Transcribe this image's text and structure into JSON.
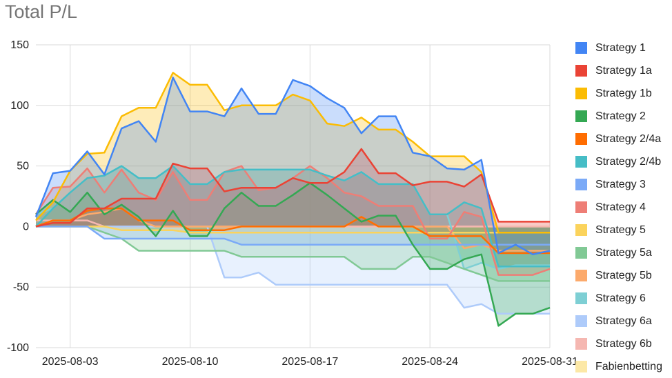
{
  "chart_data": {
    "type": "area",
    "title": "Total P/L",
    "xlabel": "",
    "ylabel": "",
    "ylim": [
      -100,
      150
    ],
    "yticks": [
      150,
      100,
      50,
      0,
      -50,
      -100
    ],
    "xlim": [
      "2025-08-01",
      "2025-08-31"
    ],
    "xticks": [
      "2025-08-03",
      "2025-08-10",
      "2025-08-17",
      "2025-08-24",
      "2025-08-31"
    ],
    "grid": true,
    "legend_position": "right",
    "x": [
      "2025-08-01",
      "2025-08-02",
      "2025-08-03",
      "2025-08-04",
      "2025-08-05",
      "2025-08-06",
      "2025-08-07",
      "2025-08-08",
      "2025-08-09",
      "2025-08-10",
      "2025-08-11",
      "2025-08-12",
      "2025-08-13",
      "2025-08-14",
      "2025-08-15",
      "2025-08-16",
      "2025-08-17",
      "2025-08-18",
      "2025-08-19",
      "2025-08-20",
      "2025-08-21",
      "2025-08-22",
      "2025-08-23",
      "2025-08-24",
      "2025-08-25",
      "2025-08-26",
      "2025-08-27",
      "2025-08-28",
      "2025-08-29",
      "2025-08-30",
      "2025-08-31"
    ],
    "series": [
      {
        "name": "Fabienbetting",
        "color": "#fce8a6",
        "values": [
          0,
          0,
          0,
          0,
          0,
          0,
          0,
          0,
          0,
          0,
          0,
          0,
          0,
          0,
          0,
          0,
          0,
          0,
          0,
          0,
          0,
          0,
          0,
          0,
          0,
          0,
          0,
          0,
          0,
          0,
          0
        ]
      },
      {
        "name": "Strategy 6b",
        "color": "#f5b7b1",
        "values": [
          5,
          5,
          5,
          5,
          0,
          0,
          0,
          0,
          0,
          0,
          0,
          0,
          0,
          0,
          0,
          0,
          0,
          0,
          0,
          0,
          0,
          0,
          0,
          0,
          0,
          0,
          0,
          0,
          0,
          0,
          0
        ]
      },
      {
        "name": "Strategy 6a",
        "color": "#aecbfa",
        "values": [
          0,
          0,
          0,
          0,
          0,
          0,
          0,
          0,
          0,
          0,
          0,
          -42,
          -42,
          -38,
          -48,
          -48,
          -48,
          -48,
          -48,
          -48,
          -48,
          -48,
          -48,
          -48,
          -48,
          -67,
          -64,
          -72,
          -72,
          -72,
          -72
        ]
      },
      {
        "name": "Strategy 6",
        "color": "#7ecfd4",
        "values": [
          10,
          15,
          28,
          40,
          42,
          50,
          40,
          40,
          50,
          35,
          35,
          45,
          47,
          47,
          47,
          47,
          47,
          42,
          38,
          45,
          35,
          35,
          35,
          10,
          10,
          -35,
          -30,
          -35,
          -32,
          -32,
          -32
        ]
      },
      {
        "name": "Strategy 5b",
        "color": "#fcaa6c",
        "values": [
          0,
          5,
          5,
          10,
          12,
          15,
          5,
          0,
          0,
          0,
          0,
          0,
          0,
          0,
          0,
          0,
          0,
          0,
          0,
          8,
          0,
          0,
          0,
          0,
          0,
          -18,
          -15,
          -20,
          -20,
          -20,
          -20
        ]
      },
      {
        "name": "Strategy 5a",
        "color": "#81c995",
        "values": [
          0,
          0,
          0,
          0,
          -5,
          -10,
          -20,
          -20,
          -20,
          -20,
          -20,
          -20,
          -25,
          -25,
          -25,
          -25,
          -25,
          -25,
          -25,
          -35,
          -35,
          -35,
          -25,
          -25,
          -30,
          -35,
          -40,
          -45,
          -45,
          -45,
          -45
        ]
      },
      {
        "name": "Strategy 5",
        "color": "#fbd35c",
        "values": [
          0,
          0,
          0,
          0,
          0,
          -3,
          -3,
          -3,
          -3,
          -5,
          -5,
          -5,
          -5,
          -5,
          -5,
          -5,
          -5,
          -5,
          -5,
          -5,
          -5,
          -5,
          -5,
          -5,
          -5,
          -5,
          -5,
          -5,
          -5,
          -5,
          -5
        ]
      },
      {
        "name": "Strategy 4",
        "color": "#ee7e76",
        "values": [
          10,
          32,
          33,
          48,
          28,
          47,
          28,
          22,
          45,
          22,
          22,
          45,
          50,
          30,
          32,
          40,
          50,
          40,
          28,
          25,
          17,
          17,
          17,
          -10,
          -10,
          12,
          8,
          -40,
          -40,
          -40,
          -35
        ]
      },
      {
        "name": "Strategy 3",
        "color": "#7baaf7",
        "values": [
          0,
          0,
          0,
          0,
          -10,
          -10,
          -10,
          -10,
          -10,
          -10,
          -10,
          -10,
          -15,
          -15,
          -15,
          -15,
          -15,
          -15,
          -15,
          -15,
          -15,
          -15,
          -15,
          -15,
          -15,
          -15,
          -15,
          -15,
          -15,
          -15,
          -15
        ]
      },
      {
        "name": "Strategy 2/4b",
        "color": "#46bdc6",
        "values": [
          0,
          15,
          28,
          40,
          42,
          50,
          40,
          40,
          50,
          35,
          35,
          45,
          47,
          47,
          47,
          47,
          47,
          42,
          38,
          45,
          35,
          35,
          35,
          10,
          10,
          20,
          15,
          -33,
          -33,
          -33,
          -33
        ]
      },
      {
        "name": "Strategy 2/4a",
        "color": "#ff6d01",
        "values": [
          0,
          5,
          5,
          13,
          15,
          15,
          5,
          5,
          5,
          -3,
          -3,
          -3,
          0,
          0,
          0,
          0,
          0,
          0,
          0,
          8,
          0,
          0,
          0,
          -8,
          -8,
          -8,
          -8,
          -22,
          -22,
          -22,
          -22
        ]
      },
      {
        "name": "Strategy 2",
        "color": "#34a853",
        "values": [
          10,
          22,
          12,
          28,
          10,
          18,
          8,
          -8,
          13,
          -8,
          -8,
          15,
          28,
          17,
          17,
          26,
          36,
          26,
          15,
          4,
          9,
          9,
          -15,
          -35,
          -35,
          -27,
          -23,
          -82,
          -72,
          -72,
          -67
        ]
      },
      {
        "name": "Strategy 1b",
        "color": "#fbbc04",
        "values": [
          5,
          20,
          46,
          60,
          61,
          91,
          98,
          98,
          127,
          117,
          117,
          96,
          100,
          100,
          100,
          109,
          104,
          85,
          83,
          90,
          80,
          80,
          70,
          58,
          58,
          58,
          45,
          -5,
          -5,
          -5,
          -5
        ]
      },
      {
        "name": "Strategy 1a",
        "color": "#ea4335",
        "values": [
          0,
          3,
          3,
          15,
          15,
          23,
          23,
          23,
          52,
          48,
          48,
          29,
          32,
          32,
          32,
          40,
          36,
          36,
          45,
          64,
          44,
          44,
          34,
          37,
          37,
          33,
          43,
          4,
          4,
          4,
          4
        ]
      },
      {
        "name": "Strategy 1",
        "color": "#4285f4",
        "values": [
          8,
          44,
          46,
          62,
          43,
          81,
          87,
          70,
          123,
          95,
          95,
          91,
          114,
          93,
          93,
          121,
          116,
          106,
          98,
          77,
          91,
          91,
          61,
          58,
          48,
          47,
          55,
          -22,
          -15,
          -23,
          -20
        ]
      }
    ],
    "legend_order": [
      "Strategy 1",
      "Strategy 1a",
      "Strategy 1b",
      "Strategy 2",
      "Strategy 2/4a",
      "Strategy 2/4b",
      "Strategy 3",
      "Strategy 4",
      "Strategy 5",
      "Strategy 5a",
      "Strategy 5b",
      "Strategy 6",
      "Strategy 6a",
      "Strategy 6b",
      "Fabienbetting"
    ]
  }
}
